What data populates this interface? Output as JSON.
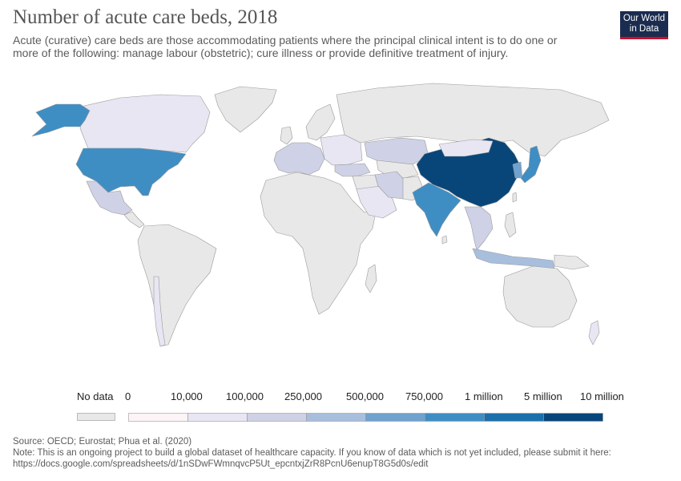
{
  "header": {
    "title": "Number of acute care beds, 2018",
    "subtitle": "Acute (curative) care beds are those accommodating patients where the principal clinical intent is to do one or more of the following: manage labour (obstetric); cure illness or provide definitive treatment of injury."
  },
  "logo": {
    "line1": "Our World",
    "line2": "in Data",
    "bg_color": "#1a2c4f",
    "accent_color": "#c8102e"
  },
  "legend": {
    "no_data_label": "No data",
    "no_data_color": "#e8e8e8",
    "ticks": [
      "0",
      "10,000",
      "100,000",
      "250,000",
      "500,000",
      "750,000",
      "1 million",
      "5 million",
      "10 million"
    ],
    "bins": [
      {
        "label": "0 – 10,000",
        "color": "#fdf4f7"
      },
      {
        "label": "10,000 – 100,000",
        "color": "#e8e6f3"
      },
      {
        "label": "100,000 – 250,000",
        "color": "#cfd1e6"
      },
      {
        "label": "250,000 – 500,000",
        "color": "#a8bedd"
      },
      {
        "label": "500,000 – 750,000",
        "color": "#6fa2ce"
      },
      {
        "label": "750,000 – 1 million",
        "color": "#3e8ec4"
      },
      {
        "label": "1 million – 5 million",
        "color": "#1b6fab"
      },
      {
        "label": "5 million – 10 million",
        "color": "#08467a"
      }
    ]
  },
  "map": {
    "regions": [
      {
        "name": "Canada",
        "bin": 1
      },
      {
        "name": "Alaska",
        "bin": 5
      },
      {
        "name": "United States",
        "bin": 5
      },
      {
        "name": "Mexico",
        "bin": 2
      },
      {
        "name": "Greenland",
        "bin": -1
      },
      {
        "name": "South America",
        "bin": -1
      },
      {
        "name": "Chile",
        "bin": 1
      },
      {
        "name": "Africa",
        "bin": -1
      },
      {
        "name": "Western Europe",
        "bin": 2
      },
      {
        "name": "Eastern Europe",
        "bin": 1
      },
      {
        "name": "Russia",
        "bin": -1
      },
      {
        "name": "Kazakhstan",
        "bin": 2
      },
      {
        "name": "Turkey",
        "bin": 2
      },
      {
        "name": "Saudi Arabia",
        "bin": 1
      },
      {
        "name": "Iran",
        "bin": 2
      },
      {
        "name": "India",
        "bin": 5
      },
      {
        "name": "China",
        "bin": 7
      },
      {
        "name": "Mongolia",
        "bin": 1
      },
      {
        "name": "Japan",
        "bin": 5
      },
      {
        "name": "South Korea",
        "bin": 4
      },
      {
        "name": "Southeast Asia",
        "bin": 2
      },
      {
        "name": "Indonesia",
        "bin": 3
      },
      {
        "name": "Australia",
        "bin": -1
      },
      {
        "name": "New Zealand",
        "bin": 1
      }
    ]
  },
  "footer": {
    "source": "Source: OECD; Eurostat; Phua et al. (2020)",
    "note": "Note: This is an ongoing project to build a global dataset of healthcare capacity. If you know of data which is not yet included, please submit it here: https://docs.google.com/spreadsheets/d/1nSDwFWmnqvcP5Ut_epcntxjZrR8PcnU6enupT8G5d0s/edit"
  }
}
